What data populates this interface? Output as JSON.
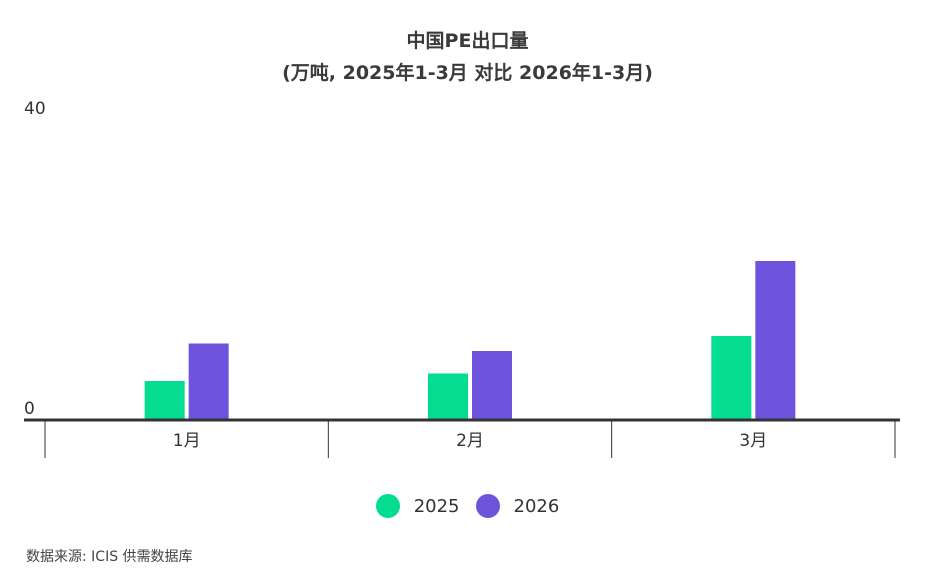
{
  "chart_data": {
    "type": "bar",
    "title": "中国PE出口量",
    "subtitle": "(万吨, 2025年1-3月 对比 2026年1-3月)",
    "categories": [
      "1月",
      "2月",
      "3月"
    ],
    "series": [
      {
        "name": "2025",
        "values": [
          5.2,
          6.2,
          11.2
        ],
        "color": "#04dc92"
      },
      {
        "name": "2026",
        "values": [
          10.2,
          9.2,
          21.2
        ],
        "color": "#6e53dc"
      }
    ],
    "ylim": [
      0,
      40
    ],
    "yticks": [
      "0",
      "40"
    ],
    "grid": false,
    "legend": "bottom-center"
  },
  "source": "数据来源: ICIS 供需数据库"
}
